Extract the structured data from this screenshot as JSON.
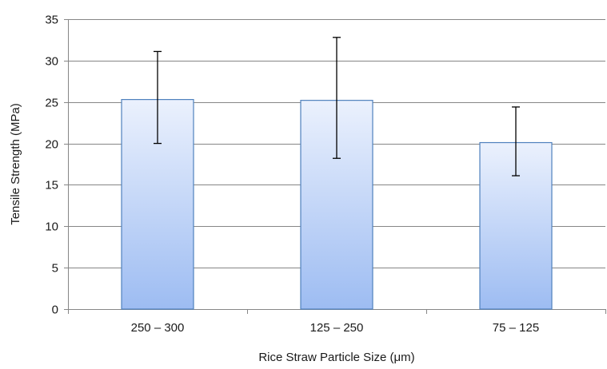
{
  "chart_data": {
    "type": "bar",
    "title": "",
    "xlabel": "Rice Straw Particle Size (μm)",
    "ylabel": "Tensile Strength (MPa)",
    "categories": [
      "250 – 300",
      "125 – 250",
      "75 – 125"
    ],
    "values": [
      25.3,
      25.2,
      20.1
    ],
    "error_low": [
      20.0,
      18.2,
      16.1
    ],
    "error_high": [
      31.1,
      32.8,
      24.4
    ],
    "ylim": [
      0,
      35
    ],
    "yticks": [
      0,
      5,
      10,
      15,
      20,
      25,
      30,
      35
    ],
    "grid": true,
    "legend": "none",
    "colors": {
      "bar_top": "#ebf1fd",
      "bar_bottom": "#9dbcf2",
      "bar_border": "#4f81bd",
      "grid": "#868686",
      "axis": "#868686",
      "error_bar": "#000000"
    }
  }
}
